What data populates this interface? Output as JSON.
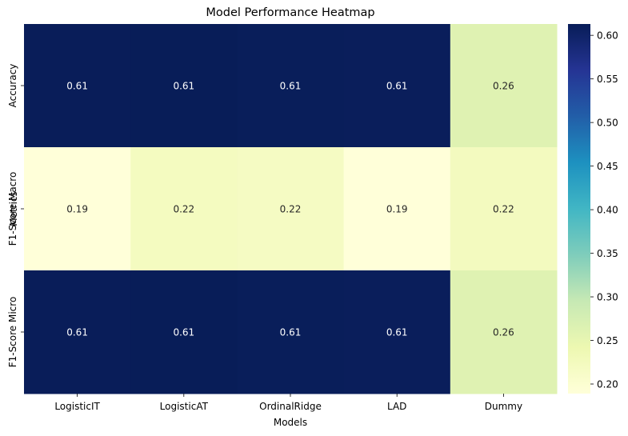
{
  "chart_data": {
    "type": "heatmap",
    "title": "Model Performance Heatmap",
    "xlabel": "Models",
    "ylabel": "Metrics",
    "x_categories": [
      "LogisticIT",
      "LogisticAT",
      "OrdinalRidge",
      "LAD",
      "Dummy"
    ],
    "y_categories": [
      "Accuracy",
      "F1-Score Macro",
      "F1-Score Micro"
    ],
    "values": [
      [
        0.612,
        0.613,
        0.611,
        0.61,
        0.262
      ],
      [
        0.189,
        0.222,
        0.218,
        0.189,
        0.224
      ],
      [
        0.612,
        0.613,
        0.611,
        0.61,
        0.262
      ]
    ],
    "value_labels": [
      [
        "0.61",
        "0.61",
        "0.61",
        "0.61",
        "0.26"
      ],
      [
        "0.19",
        "0.22",
        "0.22",
        "0.19",
        "0.22"
      ],
      [
        "0.61",
        "0.61",
        "0.61",
        "0.61",
        "0.26"
      ]
    ],
    "colormap": "YlGnBu",
    "colorbar": {
      "range": [
        0.189,
        0.613
      ],
      "ticks": [
        0.2,
        0.25,
        0.3,
        0.35,
        0.4,
        0.45,
        0.5,
        0.55,
        0.6
      ],
      "tick_labels": [
        "0.20",
        "0.25",
        "0.30",
        "0.35",
        "0.40",
        "0.45",
        "0.50",
        "0.55",
        "0.60"
      ],
      "placement": "right"
    },
    "colors": {
      "stops": [
        "#ffffd9",
        "#edf8b1",
        "#c7e9b4",
        "#7fcdbb",
        "#41b6c4",
        "#1d91c0",
        "#225ea8",
        "#253494",
        "#081d58"
      ],
      "text_dark": "#262626",
      "text_light": "#ffffff"
    }
  }
}
